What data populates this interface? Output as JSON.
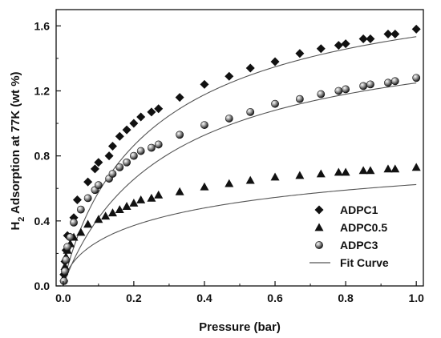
{
  "chart_data": {
    "type": "scatter",
    "xlabel": "Pressure (bar)",
    "ylabel": "H2 Adsorption at 77K (wt %)",
    "ylabel_parts": {
      "pre": "H",
      "sub": "2",
      "post": " Adsorption at 77K (wt %)"
    },
    "xlim": [
      -0.02,
      1.02
    ],
    "ylim": [
      0.0,
      1.7
    ],
    "xticks": [
      0.0,
      0.2,
      0.4,
      0.6,
      0.8,
      1.0
    ],
    "xtick_labels": [
      "0.0",
      "0.2",
      "0.4",
      "0.6",
      "0.8",
      "1.0"
    ],
    "yticks": [
      0.0,
      0.4,
      0.8,
      1.2,
      1.6
    ],
    "ytick_labels": [
      "0.0",
      "0.4",
      "0.8",
      "1.2",
      "1.6"
    ],
    "grid": false,
    "legend_position": "bottom-right",
    "fit_curve_label": "Fit Curve",
    "series": [
      {
        "name": "ADPC1",
        "marker": "diamond",
        "x": [
          0.002,
          0.005,
          0.008,
          0.012,
          0.02,
          0.03,
          0.04,
          0.07,
          0.09,
          0.1,
          0.13,
          0.14,
          0.16,
          0.18,
          0.2,
          0.22,
          0.25,
          0.27,
          0.33,
          0.4,
          0.47,
          0.53,
          0.6,
          0.67,
          0.73,
          0.78,
          0.8,
          0.85,
          0.87,
          0.92,
          0.94,
          1.0
        ],
        "y": [
          0.07,
          0.15,
          0.22,
          0.31,
          0.3,
          0.42,
          0.53,
          0.64,
          0.72,
          0.76,
          0.8,
          0.86,
          0.92,
          0.96,
          1.0,
          1.04,
          1.07,
          1.09,
          1.16,
          1.24,
          1.29,
          1.34,
          1.38,
          1.43,
          1.46,
          1.48,
          1.49,
          1.52,
          1.52,
          1.55,
          1.55,
          1.58
        ]
      },
      {
        "name": "ADPC0.5",
        "marker": "triangle",
        "x": [
          0.002,
          0.005,
          0.008,
          0.012,
          0.02,
          0.03,
          0.05,
          0.07,
          0.1,
          0.12,
          0.14,
          0.16,
          0.18,
          0.2,
          0.22,
          0.25,
          0.27,
          0.33,
          0.4,
          0.47,
          0.53,
          0.6,
          0.67,
          0.73,
          0.78,
          0.8,
          0.85,
          0.87,
          0.92,
          0.94,
          1.0
        ],
        "y": [
          0.05,
          0.12,
          0.18,
          0.22,
          0.26,
          0.3,
          0.33,
          0.38,
          0.41,
          0.43,
          0.45,
          0.47,
          0.49,
          0.51,
          0.53,
          0.54,
          0.56,
          0.58,
          0.61,
          0.63,
          0.65,
          0.67,
          0.68,
          0.69,
          0.7,
          0.7,
          0.71,
          0.71,
          0.72,
          0.72,
          0.73
        ]
      },
      {
        "name": "ADPC3",
        "marker": "sphere",
        "x": [
          0.002,
          0.005,
          0.008,
          0.012,
          0.02,
          0.03,
          0.05,
          0.07,
          0.09,
          0.1,
          0.13,
          0.14,
          0.16,
          0.18,
          0.2,
          0.22,
          0.25,
          0.27,
          0.33,
          0.4,
          0.47,
          0.53,
          0.6,
          0.67,
          0.73,
          0.78,
          0.8,
          0.85,
          0.87,
          0.92,
          0.94,
          1.0
        ],
        "y": [
          0.03,
          0.09,
          0.16,
          0.24,
          0.3,
          0.39,
          0.47,
          0.54,
          0.59,
          0.62,
          0.66,
          0.69,
          0.73,
          0.76,
          0.8,
          0.83,
          0.85,
          0.87,
          0.93,
          0.99,
          1.03,
          1.07,
          1.12,
          1.15,
          1.18,
          1.2,
          1.21,
          1.23,
          1.24,
          1.25,
          1.26,
          1.28
        ]
      }
    ],
    "fit_curves": [
      {
        "series": "ADPC1",
        "qmax": 2.0,
        "b": 3.7,
        "n": 0.91
      },
      {
        "series": "ADPC0.5",
        "qmax": 1.0,
        "b": 2.2,
        "n": 0.64
      },
      {
        "series": "ADPC3",
        "qmax": 1.66,
        "b": 3.2,
        "n": 0.955
      }
    ]
  }
}
